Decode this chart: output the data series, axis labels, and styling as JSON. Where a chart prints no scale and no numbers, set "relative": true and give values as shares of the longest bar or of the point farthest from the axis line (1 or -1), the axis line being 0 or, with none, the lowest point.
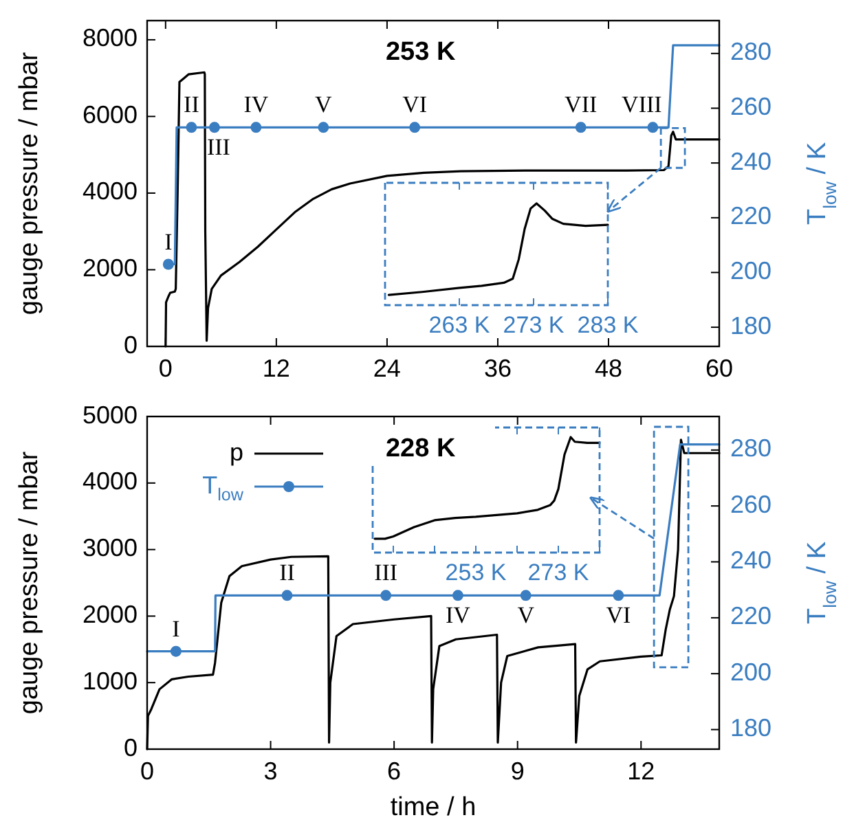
{
  "chart_data": [
    {
      "type": "line",
      "title": "253 K",
      "ylabel": "gauge pressure / mbar",
      "y2label": "T$_{low}$ / K",
      "xlim": [
        -2,
        60
      ],
      "ylim": [
        0,
        8500
      ],
      "y2lim": [
        173,
        292
      ],
      "xticks": [
        0,
        12,
        24,
        36,
        48,
        60
      ],
      "yticks": [
        0,
        2000,
        4000,
        6000,
        8000
      ],
      "y2ticks": [
        180,
        200,
        220,
        240,
        260,
        280
      ],
      "series": [
        {
          "color": "#000000",
          "x": [
            0,
            0.05,
            0.3,
            0.5,
            1,
            1.1,
            1.3,
            1.5,
            2,
            2.5,
            4.2,
            4.25,
            4.3,
            4.45,
            4.6,
            5,
            6,
            8,
            10,
            12,
            14,
            16,
            18,
            20,
            24,
            28,
            32,
            40,
            50,
            54,
            54.5,
            54.8,
            55,
            55.3,
            60
          ],
          "values": [
            0,
            1150,
            1300,
            1400,
            1430,
            1500,
            4000,
            6900,
            7000,
            7100,
            7150,
            7100,
            3000,
            150,
            1000,
            1500,
            1850,
            2200,
            2600,
            3050,
            3500,
            3850,
            4100,
            4250,
            4450,
            4530,
            4570,
            4590,
            4590,
            4600,
            4700,
            5500,
            5600,
            5400,
            5400
          ]
        },
        {
          "color": "#3a7dc0",
          "axis": "y2",
          "x": [
            0,
            1,
            1.2,
            54.5,
            55,
            60
          ],
          "values": [
            203,
            203,
            253,
            253,
            283,
            283
          ]
        },
        {
          "type": "scatter",
          "marker": "circle",
          "color": "#3a7dc0",
          "axis": "y2",
          "x": [
            0.3,
            2.8,
            5.3,
            9.8,
            17.1,
            27,
            45,
            52.8
          ],
          "values": [
            203,
            253,
            253,
            253,
            253,
            253,
            253,
            253
          ]
        }
      ],
      "annotations": [
        "I",
        "II",
        "III",
        "IV",
        "V",
        "VI",
        "VII",
        "VIII"
      ]
    },
    {
      "type": "line",
      "relative": true,
      "xlim": [
        253,
        283
      ],
      "xticks": [
        {
          "value": 263,
          "label": "263 K"
        },
        {
          "value": 273,
          "label": "273 K"
        },
        {
          "value": 283,
          "label": "283 K"
        }
      ],
      "series": [
        {
          "color": "#000000",
          "x": [
            253.5,
            258,
            263,
            266,
            269,
            270.2,
            271,
            271.8,
            272.6,
            273.4,
            274.5,
            275.5,
            277,
            280,
            283
          ],
          "values": [
            0.1,
            0.13,
            0.17,
            0.19,
            0.22,
            0.26,
            0.45,
            0.75,
            0.95,
            1.0,
            0.93,
            0.85,
            0.8,
            0.78,
            0.79
          ]
        }
      ]
    },
    {
      "type": "line",
      "title": "228 K",
      "xlabel": "time / h",
      "ylabel": "gauge pressure / mbar",
      "y2label": "T$_{low}$ / K",
      "xlim": [
        0,
        13.9
      ],
      "ylim": [
        0,
        5000
      ],
      "y2lim": [
        173,
        292
      ],
      "xticks": [
        0,
        3,
        6,
        9,
        12
      ],
      "yticks": [
        0,
        1000,
        2000,
        3000,
        4000,
        5000
      ],
      "y2ticks": [
        180,
        200,
        220,
        240,
        260,
        280
      ],
      "legend": "top left",
      "series": [
        {
          "name": "p",
          "color": "#000000",
          "x": [
            0,
            0.02,
            0.1,
            0.3,
            0.6,
            1,
            1.6,
            1.65,
            1.8,
            2,
            2.3,
            3,
            3.5,
            4.4,
            4.42,
            4.45,
            4.6,
            5,
            6,
            6.9,
            6.92,
            6.95,
            7.1,
            7.5,
            8.5,
            8.52,
            8.6,
            8.75,
            9.5,
            10.4,
            10.42,
            10.5,
            10.7,
            11,
            12,
            12.5,
            12.6,
            12.7,
            12.8,
            12.9,
            12.97,
            13.05,
            13.9
          ],
          "values": [
            0,
            500,
            600,
            900,
            1050,
            1090,
            1120,
            1300,
            2200,
            2600,
            2750,
            2850,
            2890,
            2900,
            100,
            1000,
            1700,
            1880,
            1950,
            2000,
            100,
            900,
            1550,
            1650,
            1720,
            100,
            1000,
            1400,
            1530,
            1580,
            100,
            800,
            1200,
            1320,
            1390,
            1410,
            1800,
            2100,
            2300,
            3000,
            4650,
            4450,
            4450
          ]
        },
        {
          "name": "T$_{low}$",
          "color": "#3a7dc0",
          "axis": "y2",
          "x": [
            0,
            1.65,
            1.66,
            12.45,
            12.95,
            13.9
          ],
          "values": [
            208,
            208,
            228,
            228,
            282,
            282
          ]
        },
        {
          "type": "scatter",
          "marker": "circle",
          "color": "#3a7dc0",
          "axis": "y2",
          "x": [
            0.7,
            3.4,
            5.8,
            7.55,
            9.2,
            11.45
          ],
          "values": [
            208,
            228,
            228,
            228,
            228,
            228
          ]
        }
      ],
      "annotations": [
        "I",
        "II",
        "III",
        "IV",
        "V",
        "VI"
      ]
    },
    {
      "type": "line",
      "relative": true,
      "xlim": [
        228,
        283
      ],
      "xticks": [
        {
          "value": 233,
          "label": null
        },
        {
          "value": 243,
          "label": null
        },
        {
          "value": 253,
          "label": "253 K"
        },
        {
          "value": 263,
          "label": null
        },
        {
          "value": 273,
          "label": "273 K"
        },
        {
          "value": 283,
          "label": null
        }
      ],
      "series": [
        {
          "color": "#000000",
          "x": [
            228.5,
            231,
            233,
            238,
            243,
            248,
            253,
            263,
            268,
            271,
            272,
            273,
            274.5,
            276,
            277,
            280,
            283
          ],
          "values": [
            0.12,
            0.12,
            0.14,
            0.22,
            0.28,
            0.3,
            0.31,
            0.34,
            0.37,
            0.41,
            0.45,
            0.55,
            0.85,
            1.0,
            0.96,
            0.95,
            0.95
          ]
        }
      ]
    }
  ]
}
